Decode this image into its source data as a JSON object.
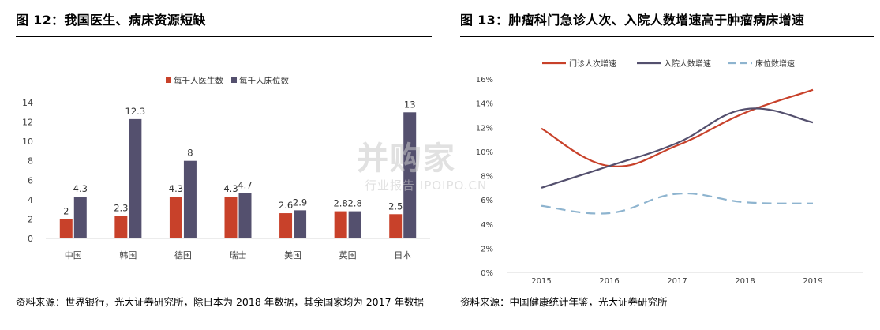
{
  "left": {
    "title": "图 12：我国医生、病床资源短缺",
    "source": "资料来源：世界银行，光大证券研究所，除日本为 2018 年数据，其余国家均为 2017 年数据"
  },
  "right": {
    "title": "图 13：肿瘤科门急诊人次、入院人数增速高于肿瘤病床增速",
    "source": "资料来源：中国健康统计年鉴，光大证券研究所"
  },
  "watermark": {
    "main": "并购家",
    "sub": "行业报告 IPOIPO.CN"
  },
  "colors": {
    "red": "#C8412A",
    "purple": "#54506E",
    "blue_dash": "#8EB4CF",
    "axis": "#D9D9D9",
    "tick_text": "#404040"
  },
  "chart_data": [
    {
      "type": "bar",
      "categories": [
        "中国",
        "韩国",
        "德国",
        "瑞士",
        "美国",
        "英国",
        "日本"
      ],
      "series": [
        {
          "name": "每千人医生数",
          "values": [
            2,
            2.3,
            4.3,
            4.3,
            2.6,
            2.8,
            2.5
          ],
          "labels": [
            "2",
            "2.3",
            "4.3",
            "4.3",
            "2.6",
            "2.8",
            "2.5"
          ]
        },
        {
          "name": "每千人床位数",
          "values": [
            4.3,
            12.3,
            8,
            4.7,
            2.9,
            2.8,
            13
          ],
          "labels": [
            "4.3",
            "12.3",
            "8",
            "4.7",
            "2.9",
            "2.8",
            "13"
          ]
        }
      ],
      "yticks": [
        "0",
        "2",
        "4",
        "6",
        "8",
        "10",
        "12",
        "14"
      ],
      "ylim": [
        0,
        14
      ],
      "legend": "top"
    },
    {
      "type": "line",
      "x": [
        "2015",
        "2016",
        "2017",
        "2018",
        "2019"
      ],
      "series": [
        {
          "name": "门诊人次增速",
          "style": "solid",
          "values": [
            11.9,
            8.8,
            10.5,
            13.2,
            15.1
          ]
        },
        {
          "name": "入院人数增速",
          "style": "solid",
          "values": [
            7.0,
            8.8,
            10.7,
            13.5,
            12.4
          ]
        },
        {
          "name": "床位数增速",
          "style": "dashed",
          "values": [
            5.5,
            4.9,
            6.5,
            5.8,
            5.7
          ]
        }
      ],
      "yticks": [
        "0%",
        "2%",
        "4%",
        "6%",
        "8%",
        "10%",
        "12%",
        "14%",
        "16%"
      ],
      "ylim": [
        0,
        16
      ],
      "legend": "top"
    }
  ]
}
